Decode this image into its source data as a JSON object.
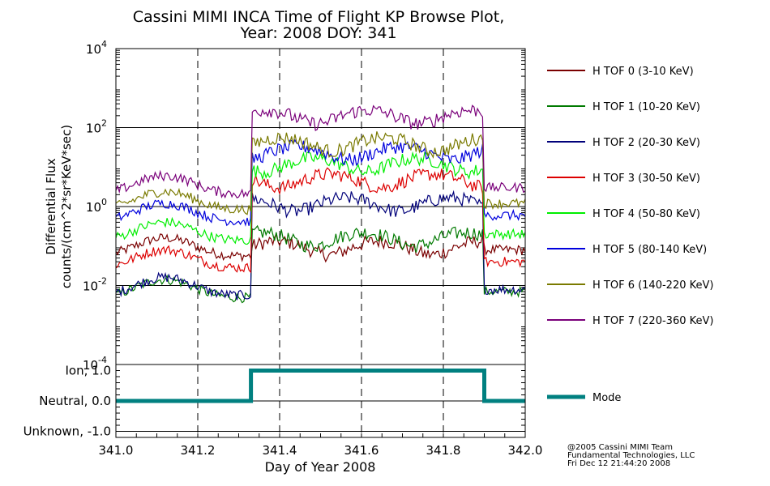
{
  "title_line1": "Cassini MIMI INCA Time of Flight KP Browse Plot,",
  "title_line2": "Year: 2008 DOY: 341",
  "credits": [
    "@2005 Cassini MIMI Team",
    "Fundamental Technologies, LLC",
    "Fri Dec 12 21:44:20 2008"
  ],
  "chart_data": [
    {
      "type": "line",
      "ylabel_line1": "Differential Flux",
      "ylabel_line2": "counts/(cm^2*sr*KeV*sec)",
      "yscale": "log",
      "ylim": [
        0.0001,
        10000
      ],
      "ytick_labels": [
        {
          "base": "10",
          "exp": "4",
          "value": 10000
        },
        {
          "base": "10",
          "exp": "2",
          "value": 100
        },
        {
          "base": "10",
          "exp": "0",
          "value": 1
        },
        {
          "base": "10",
          "exp": "-2",
          "value": 0.01
        },
        {
          "base": "10",
          "exp": "-4",
          "value": 0.0001
        }
      ],
      "xlim": [
        341.0,
        342.0
      ],
      "grid": "horizontal lines at decades, dashed vertical lines",
      "legend_position": "right",
      "series": [
        {
          "name": "H TOF 0 (3-10 KeV)",
          "color": "#7a0000",
          "low": 0.08,
          "high": 0.12
        },
        {
          "name": "H TOF 1 (10-20 KeV)",
          "color": "#007a00",
          "low": 0.007,
          "high": 0.2
        },
        {
          "name": "H TOF 2 (20-30 KeV)",
          "color": "#00007a",
          "low": 0.008,
          "high": 1.5
        },
        {
          "name": "H TOF 3 (30-50 KeV)",
          "color": "#dd0000",
          "low": 0.04,
          "high": 6
        },
        {
          "name": "H TOF 4 (50-80 KeV)",
          "color": "#00ee00",
          "low": 0.2,
          "high": 15
        },
        {
          "name": "H TOF 5 (80-140 KeV)",
          "color": "#0000dd",
          "low": 0.6,
          "high": 30
        },
        {
          "name": "H TOF 6 (140-220 KeV)",
          "color": "#7a7a00",
          "low": 1.2,
          "high": 50
        },
        {
          "name": "H TOF 7 (220-360 KeV)",
          "color": "#7a007a",
          "low": 3,
          "high": 250
        }
      ],
      "transitions": [
        341.33,
        341.9
      ]
    },
    {
      "type": "line",
      "ylim": [
        -1.2,
        1.2
      ],
      "ytick_labels": [
        {
          "label": "Ion, 1.0",
          "value": 1.0
        },
        {
          "label": "Neutral, 0.0",
          "value": 0.0
        },
        {
          "label": "Unknown, -1.0",
          "value": -1.0
        }
      ],
      "xlabel": "Day of Year 2008",
      "xtick_labels": [
        "341.0",
        "341.2",
        "341.4",
        "341.6",
        "341.8",
        "342.0"
      ],
      "xticks": [
        341.0,
        341.2,
        341.4,
        341.6,
        341.8,
        342.0
      ],
      "series": [
        {
          "name": "Mode",
          "color": "#008080",
          "x": [
            341.0,
            341.33,
            341.33,
            341.9,
            341.9,
            342.0
          ],
          "y": [
            0.0,
            0.0,
            1.0,
            1.0,
            0.0,
            0.0
          ]
        }
      ]
    }
  ]
}
